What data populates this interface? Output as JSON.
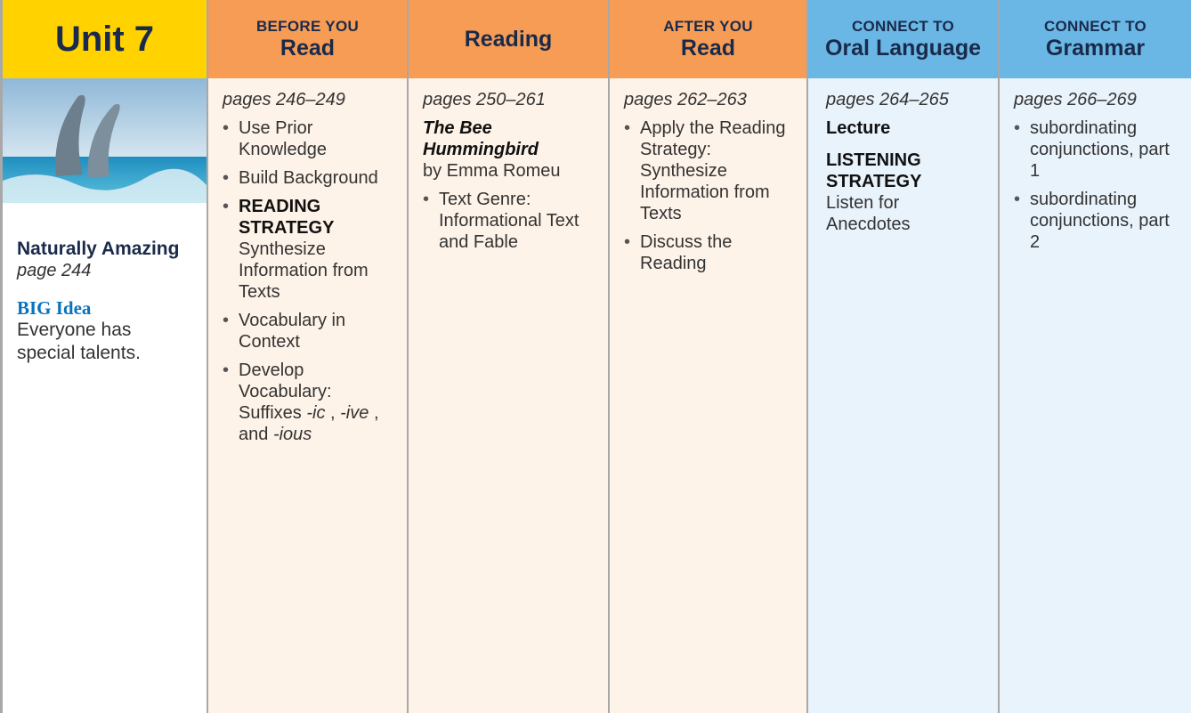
{
  "columns": [
    {
      "header": {
        "title": "Unit 7"
      },
      "title": "Naturally Amazing",
      "page": "page 244",
      "big_idea_label": "BIG Idea",
      "big_idea": "Everyone has special talents."
    },
    {
      "header": {
        "kicker": "BEFORE YOU",
        "title": "Read"
      },
      "pages": "pages 246–249",
      "items": [
        {
          "parts": [
            {
              "text": "Use Prior Knowledge"
            }
          ]
        },
        {
          "parts": [
            {
              "text": "Build Background"
            }
          ]
        },
        {
          "label": "READING STRATEGY",
          "parts": [
            {
              "text": "Synthesize Information from Texts"
            }
          ]
        },
        {
          "parts": [
            {
              "text": "Vocabulary in Context"
            }
          ]
        },
        {
          "parts": [
            {
              "text": "Develop Vocabulary: Suffixes "
            },
            {
              "text": "-ic",
              "italic": true
            },
            {
              "text": ","
            },
            {
              "text": "-ive",
              "italic": true
            },
            {
              "text": ", and"
            },
            {
              "text": "-ious",
              "italic": true
            }
          ]
        }
      ]
    },
    {
      "header": {
        "title": "Reading"
      },
      "pages": "pages 250–261",
      "book_title": "The Bee Hummingbird",
      "author": "by Emma Romeu",
      "items": [
        {
          "parts": [
            {
              "text": "Text Genre: Informational Text and Fable"
            }
          ]
        }
      ]
    },
    {
      "header": {
        "kicker": "AFTER YOU",
        "title": "Read"
      },
      "pages": "pages 262–263",
      "items": [
        {
          "parts": [
            {
              "text": "Apply the Reading Strategy: Synthesize Information from Texts"
            }
          ]
        },
        {
          "parts": [
            {
              "text": "Discuss the Reading"
            }
          ]
        }
      ]
    },
    {
      "header": {
        "kicker": "CONNECT TO",
        "title": "Oral Language"
      },
      "pages": "pages 264–265",
      "lecture": "Lecture",
      "strategy_label": "LISTENING STRATEGY",
      "strategy": "Listen for Anecdotes"
    },
    {
      "header": {
        "kicker": "CONNECT TO",
        "title": "Grammar"
      },
      "pages": "pages 266–269",
      "items": [
        {
          "parts": [
            {
              "text": "subordinating conjunctions, part 1"
            }
          ]
        },
        {
          "parts": [
            {
              "text": "subordinating conjunctions, part 2"
            }
          ]
        }
      ]
    }
  ]
}
